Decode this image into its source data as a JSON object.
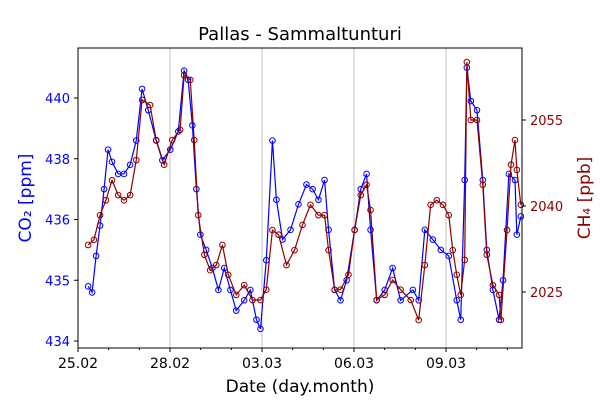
{
  "chart_data": {
    "type": "line",
    "title": "Pallas - Sammaltunturi",
    "xlabel": "Date (day.month)",
    "ylabel_left": "CO₂ [ppm]",
    "ylabel_right": "CH₄ [ppb]",
    "x_unit": "days since 25.02",
    "x_ticks": [
      {
        "value": 0,
        "label": "25.02"
      },
      {
        "value": 3,
        "label": "28.02"
      },
      {
        "value": 6,
        "label": "03.03"
      },
      {
        "value": 9,
        "label": "06.03"
      },
      {
        "value": 12,
        "label": "09.03"
      }
    ],
    "xlim": [
      0,
      14.5
    ],
    "grid": "vertical at major x ticks",
    "y_left_ticks": [
      "434",
      "435",
      "436",
      "438",
      "440"
    ],
    "y_right_ticks": [
      {
        "value": 2025,
        "label": "2025"
      },
      {
        "value": 2040,
        "label": "2040"
      },
      {
        "value": 2055,
        "label": "2055"
      }
    ],
    "y_right_lim": [
      2019.2,
      2066.3
    ],
    "colors": {
      "co2": "#0000ff",
      "ch4": "#8b0000"
    },
    "series": [
      {
        "name": "CO2",
        "axis": "left",
        "x": [
          0.33,
          0.46,
          0.59,
          0.72,
          0.85,
          0.98,
          1.11,
          1.31,
          1.5,
          1.7,
          1.9,
          2.09,
          2.29,
          2.55,
          2.75,
          3.01,
          3.27,
          3.46,
          3.59,
          3.73,
          3.86,
          3.99,
          4.18,
          4.38,
          4.58,
          4.77,
          4.97,
          5.16,
          5.42,
          5.62,
          5.82,
          5.95,
          6.14,
          6.34,
          6.47,
          6.67,
          6.93,
          7.19,
          7.45,
          7.65,
          7.84,
          8.04,
          8.17,
          8.37,
          8.56,
          8.76,
          9.02,
          9.22,
          9.41,
          9.54,
          9.74,
          10.0,
          10.26,
          10.52,
          10.92,
          11.11,
          11.31,
          11.57,
          11.83,
          12.09,
          12.35,
          12.48,
          12.61,
          12.68,
          12.81,
          13.01,
          13.2,
          13.33,
          13.53,
          13.73,
          13.86,
          14.05,
          14.25,
          14.31,
          14.44
        ],
        "y": [
          434.9,
          434.8,
          435.4,
          435.9,
          437.0,
          438.3,
          437.9,
          437.5,
          437.5,
          437.8,
          438.6,
          440.3,
          439.6,
          438.6,
          437.95,
          438.3,
          438.9,
          440.9,
          440.6,
          439.1,
          437.0,
          435.75,
          435.5,
          435.2,
          434.84,
          435.2,
          434.84,
          434.5,
          434.67,
          434.84,
          434.35,
          434.2,
          435.33,
          438.6,
          436.65,
          435.67,
          435.83,
          436.5,
          437.15,
          437.0,
          436.65,
          437.3,
          435.83,
          434.84,
          434.67,
          435.0,
          435.83,
          437.0,
          437.5,
          435.83,
          434.67,
          434.84,
          435.2,
          434.67,
          434.84,
          434.67,
          435.83,
          435.67,
          435.5,
          435.4,
          434.67,
          434.35,
          437.3,
          441.0,
          439.9,
          439.6,
          437.3,
          435.5,
          434.84,
          434.35,
          435.0,
          437.5,
          437.3,
          435.75,
          436.1
        ]
      },
      {
        "name": "CH4",
        "axis": "right",
        "x": [
          0.33,
          0.52,
          0.72,
          0.91,
          1.11,
          1.31,
          1.5,
          1.7,
          1.9,
          2.09,
          2.35,
          2.55,
          2.81,
          3.07,
          3.33,
          3.46,
          3.66,
          3.79,
          3.92,
          4.12,
          4.31,
          4.51,
          4.71,
          4.9,
          5.16,
          5.42,
          5.69,
          5.95,
          6.14,
          6.34,
          6.54,
          6.8,
          7.06,
          7.32,
          7.58,
          7.84,
          8.04,
          8.17,
          8.37,
          8.56,
          8.82,
          9.02,
          9.22,
          9.41,
          9.54,
          9.74,
          10.0,
          10.26,
          10.52,
          10.85,
          11.11,
          11.31,
          11.5,
          11.7,
          11.9,
          12.09,
          12.22,
          12.35,
          12.48,
          12.61,
          12.68,
          12.81,
          13.01,
          13.2,
          13.33,
          13.53,
          13.73,
          13.79,
          13.99,
          14.12,
          14.25,
          14.31,
          14.44
        ],
        "y": [
          2033.2,
          2034.1,
          2038.4,
          2041.0,
          2044.5,
          2041.9,
          2041.0,
          2041.9,
          2048.0,
          2058.5,
          2057.6,
          2051.5,
          2047.2,
          2051.5,
          2053.3,
          2062.8,
          2062.0,
          2051.5,
          2038.4,
          2031.5,
          2028.8,
          2029.7,
          2033.2,
          2028.0,
          2024.5,
          2026.2,
          2023.6,
          2023.6,
          2025.4,
          2035.8,
          2035.0,
          2029.7,
          2032.3,
          2036.7,
          2040.2,
          2038.4,
          2038.4,
          2032.3,
          2025.4,
          2025.4,
          2028.0,
          2035.8,
          2041.9,
          2043.7,
          2039.3,
          2023.6,
          2024.5,
          2027.1,
          2025.4,
          2023.6,
          2020.1,
          2029.7,
          2040.2,
          2041.0,
          2040.2,
          2038.4,
          2032.3,
          2028.0,
          2024.5,
          2030.6,
          2065.1,
          2055.0,
          2055.0,
          2043.7,
          2031.5,
          2026.2,
          2024.5,
          2020.1,
          2035.8,
          2047.2,
          2051.5,
          2046.3,
          2040.2
        ]
      }
    ]
  }
}
